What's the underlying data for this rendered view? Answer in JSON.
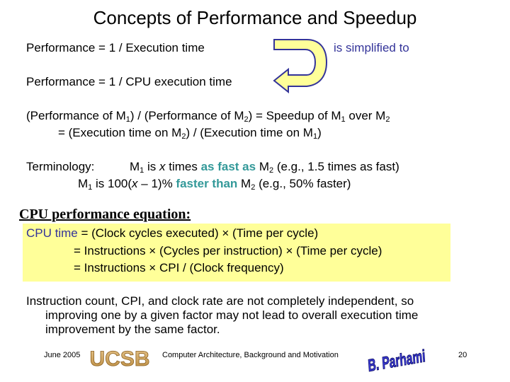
{
  "slide": {
    "title": "Concepts of Performance and Speedup",
    "perf_line1": "Performance = 1 / Execution time",
    "simplified": "is simplified to",
    "perf_line2": "Performance = 1 / CPU execution time",
    "speedup": {
      "a1": "(Performance of M",
      "s1": "1",
      "a2": ") / (Performance of M",
      "s2": "2",
      "a3": ") = Speedup of  M",
      "s3": "1",
      "a4": " over M",
      "s4": "2",
      "b1": "=  (Execution time on M",
      "t1": "2",
      "b2": ") / (Execution time on M",
      "t2": "1",
      "b3": ")"
    },
    "terminology": {
      "label": "Terminology:",
      "l1a": "M",
      "l1s1": "1",
      "l1b": " is ",
      "l1x": "x",
      "l1c": " times ",
      "l1fast": "as fast as",
      "l1d": " M",
      "l1s2": "2",
      "l1e": " (e.g., 1.5 times as fast)",
      "l2a": "M",
      "l2s1": "1",
      "l2b": " is 100(",
      "l2x": "x",
      "l2c": " – 1)% ",
      "l2fast": "faster than",
      "l2d": " M",
      "l2s2": "2",
      "l2e": " (e.g., 50% faster)"
    },
    "cpu_heading": "CPU performance equation:",
    "equation": {
      "l1_blue": "CPU time",
      "l1_rest": " = (Clock cycles executed) × (Time per cycle)",
      "l2": "= Instructions × (Cycles per instruction) × (Time per cycle)",
      "l3": "= Instructions × CPI / (Clock frequency)"
    },
    "note_lines": [
      "Instruction count, CPI, and clock rate are not completely independent, so",
      "improving one by a given factor may not lead to overall execution time",
      "improvement by the same factor."
    ]
  },
  "footer": {
    "date": "June 2005",
    "ucsb_logo": "UCSB",
    "course": "Computer Architecture, Background and Motivation",
    "author_logo": "B. Parhami",
    "page": "20"
  },
  "colors": {
    "blue": "#333399",
    "teal": "#339999",
    "highlight": "#ffff99",
    "arrow": "#ffff99"
  },
  "icons": [
    "curved-arrow-icon",
    "ucsb-logo",
    "parhami-logo"
  ]
}
